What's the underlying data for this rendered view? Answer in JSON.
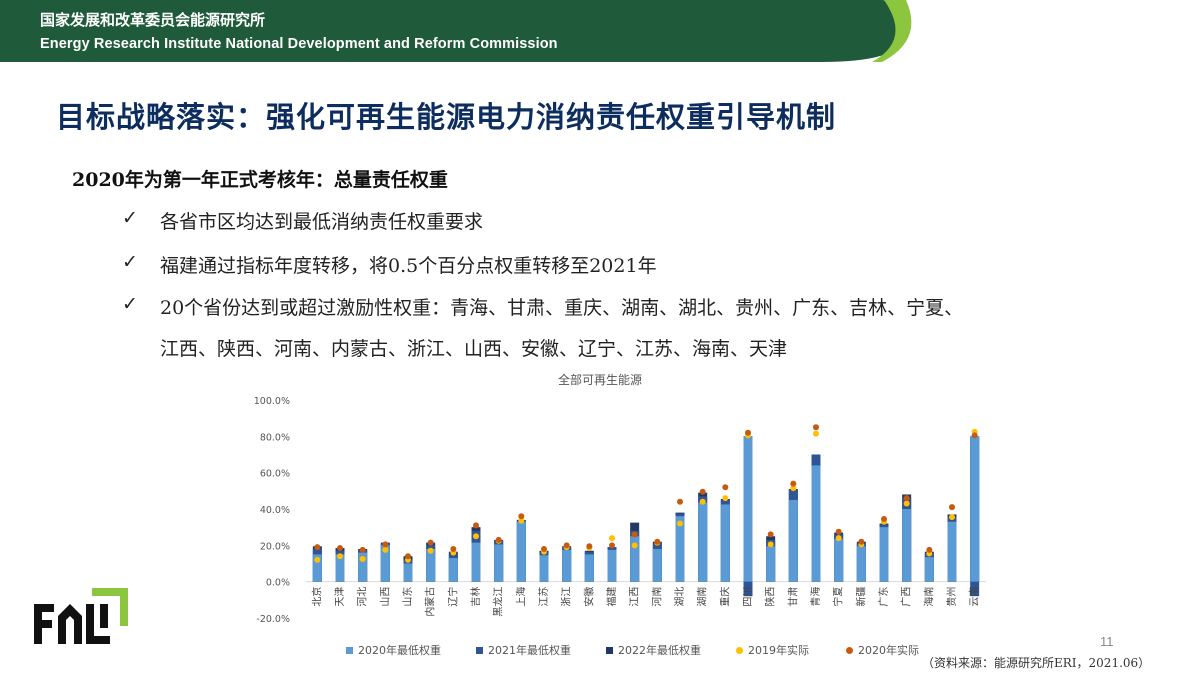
{
  "header": {
    "org_cn": "国家发展和改革委员会能源研究所",
    "org_en": "Energy Research Institute National Development and Reform Commission"
  },
  "slide": {
    "title": "目标战略落实：强化可再生能源电力消纳责任权重引导机制",
    "subtitle": "2020年为第一年正式考核年：总量责任权重",
    "bullets": [
      "各省市区均达到最低消纳责任权重要求",
      "福建通过指标年度转移，将0.5个百分点权重转移至2021年",
      "20个省份达到或超过激励性权重：青海、甘肃、重庆、湖南、湖北、贵州、广东、吉林、宁夏、",
      "江西、陕西、河南、内蒙古、浙江、山西、安徽、辽宁、江苏、海南、天津"
    ],
    "check_glyph": "✓",
    "page_number": "11",
    "source": "（资料来源：能源研究所ERI，2021.06）"
  },
  "colors": {
    "header_green": "#1f5a3a",
    "header_light_green": "#8cc63f",
    "title_navy": "#0d2d5e",
    "series_2020_min": "#5b9bd5",
    "series_2021_min": "#2f5597",
    "series_2022_min": "#1f3864",
    "series_2019_actual": "#ffc000",
    "series_2020_actual": "#c55a11"
  },
  "chart_data": {
    "type": "bar",
    "title": "全部可再生能源",
    "ylim": [
      -20,
      100
    ],
    "yticks": [
      "-20.0%",
      "0.0%",
      "20.0%",
      "40.0%",
      "60.0%",
      "80.0%",
      "100.0%"
    ],
    "ytick_values": [
      -20,
      0,
      20,
      40,
      60,
      80,
      100
    ],
    "grid": false,
    "legend_position": "bottom",
    "categories": [
      "北京",
      "天津",
      "河北",
      "山西",
      "山东",
      "内蒙古",
      "辽宁",
      "吉林",
      "黑龙江",
      "上海",
      "江苏",
      "浙江",
      "安徽",
      "福建",
      "江西",
      "河南",
      "湖北",
      "湖南",
      "重庆",
      "四川",
      "陕西",
      "甘肃",
      "青海",
      "宁夏",
      "新疆",
      "广东",
      "广西",
      "海南",
      "贵州",
      "云南"
    ],
    "series": [
      {
        "name": "2020年最低权重",
        "kind": "bar",
        "values": [
          15,
          15,
          16,
          20,
          10,
          18,
          13,
          21.5,
          20.5,
          33,
          14.5,
          17.5,
          15,
          17.5,
          25,
          18,
          36,
          43.5,
          42.5,
          80,
          19.5,
          45,
          64,
          23.5,
          19.5,
          30,
          40,
          13.5,
          33,
          80
        ]
      },
      {
        "name": "2021年最低权重",
        "kind": "bar",
        "values": [
          18,
          17,
          17.5,
          21,
          12,
          20,
          15,
          28,
          22.5,
          33.5,
          16,
          19,
          16.5,
          18.5,
          28,
          21,
          37.5,
          47,
          45,
          80,
          23,
          50.5,
          70,
          26,
          21,
          31.5,
          46,
          15.5,
          36,
          80
        ]
      },
      {
        "name": "2022年最低权重",
        "kind": "bar",
        "values": [
          19.5,
          18.5,
          18,
          21.5,
          14,
          21.5,
          16.5,
          30,
          23,
          34,
          17,
          19.5,
          17,
          19,
          32.5,
          22,
          38,
          49,
          45.5,
          80,
          25,
          51,
          70,
          27,
          22,
          32,
          48,
          16.5,
          37,
          80
        ]
      },
      {
        "name": "2019年实际",
        "kind": "point",
        "values": [
          12,
          14,
          12.5,
          17.5,
          12,
          17,
          16,
          25,
          22.5,
          33.5,
          16.5,
          19,
          18.5,
          24,
          20,
          21.5,
          32,
          44,
          46,
          80.5,
          20.5,
          51.5,
          81.5,
          24,
          20.5,
          33,
          43,
          15.5,
          35.5,
          82.5
        ]
      },
      {
        "name": "2020年实际",
        "kind": "point",
        "values": [
          19,
          18.5,
          17.5,
          20.5,
          14,
          21.5,
          18,
          31,
          23,
          36,
          18,
          20,
          19.5,
          20,
          26,
          22,
          44,
          49.5,
          52,
          82,
          26,
          54,
          85,
          27.5,
          22,
          34.5,
          46,
          17.5,
          41,
          80.5
        ]
      }
    ]
  }
}
